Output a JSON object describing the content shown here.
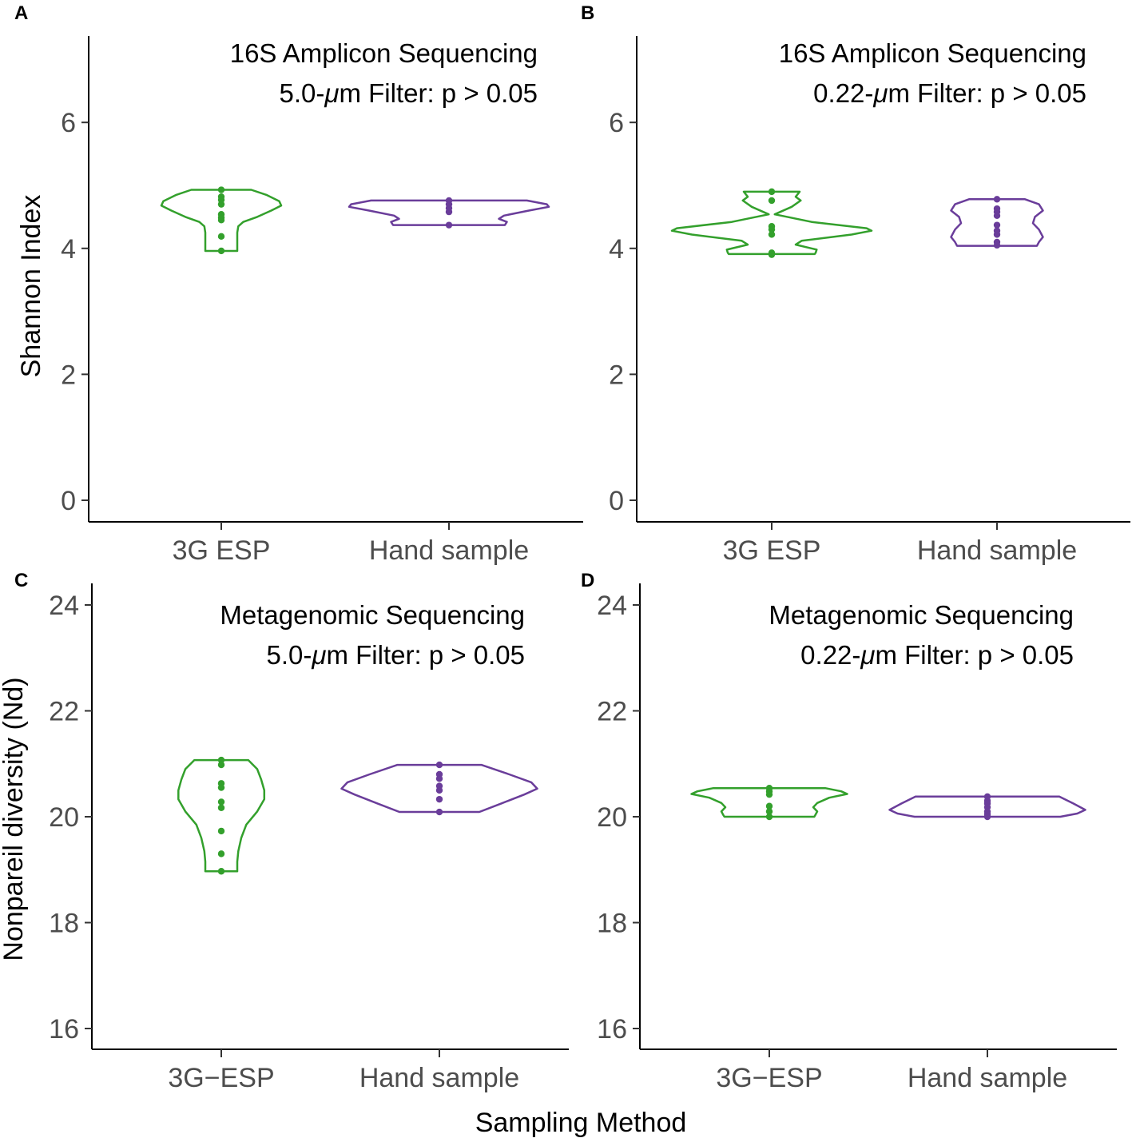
{
  "colors": {
    "esp": "#33a02c",
    "hand": "#6a3d9a",
    "axis": "#000000",
    "tick_text": "#4d4d4d"
  },
  "labels": {
    "y_top": "Shannon Index",
    "y_bottom": "Nonpareil diversity (Nd)",
    "x_shared": "Sampling Method"
  },
  "chart_data": [
    {
      "panel": "A",
      "type": "violin",
      "title": [
        "16S Amplicon Sequencing",
        "5.0-μm Filter: p > 0.05"
      ],
      "categories": [
        "3G ESP",
        "Hand sample"
      ],
      "ylim": [
        -0.35,
        7.3
      ],
      "yticks": [
        0,
        2,
        4,
        6
      ],
      "series": [
        {
          "name": "3G ESP",
          "color": "esp",
          "points": [
            4.93,
            4.82,
            4.77,
            4.7,
            4.54,
            4.49,
            4.45,
            4.19,
            3.96
          ],
          "density": [
            [
              4.93,
              0.3
            ],
            [
              4.85,
              0.45
            ],
            [
              4.75,
              0.58
            ],
            [
              4.68,
              0.6
            ],
            [
              4.6,
              0.5
            ],
            [
              4.5,
              0.36
            ],
            [
              4.42,
              0.22
            ],
            [
              4.35,
              0.17
            ],
            [
              4.25,
              0.16
            ],
            [
              3.96,
              0.16
            ]
          ]
        },
        {
          "name": "Hand sample",
          "color": "hand",
          "points": [
            4.76,
            4.7,
            4.64,
            4.58,
            4.37
          ],
          "density": [
            [
              4.76,
              0.78
            ],
            [
              4.7,
              0.98
            ],
            [
              4.66,
              1.0
            ],
            [
              4.6,
              0.8
            ],
            [
              4.52,
              0.55
            ],
            [
              4.47,
              0.5
            ],
            [
              4.42,
              0.58
            ],
            [
              4.37,
              0.56
            ]
          ]
        }
      ]
    },
    {
      "panel": "B",
      "type": "violin",
      "title": [
        "16S Amplicon Sequencing",
        "0.22-μm Filter: p > 0.05"
      ],
      "categories": [
        "3G ESP",
        "Hand sample"
      ],
      "ylim": [
        -0.35,
        7.3
      ],
      "yticks": [
        0,
        2,
        4,
        6
      ],
      "series": [
        {
          "name": "3G ESP",
          "color": "esp",
          "points": [
            4.9,
            4.76,
            4.35,
            4.3,
            4.22,
            3.93,
            3.9
          ],
          "density": [
            [
              4.9,
              0.28
            ],
            [
              4.82,
              0.24
            ],
            [
              4.76,
              0.29
            ],
            [
              4.66,
              0.2
            ],
            [
              4.54,
              0.03
            ],
            [
              4.42,
              0.4
            ],
            [
              4.32,
              0.95
            ],
            [
              4.28,
              1.0
            ],
            [
              4.22,
              0.8
            ],
            [
              4.12,
              0.3
            ],
            [
              4.06,
              0.24
            ],
            [
              3.98,
              0.45
            ],
            [
              3.93,
              0.44
            ],
            [
              3.91,
              0.43
            ]
          ]
        },
        {
          "name": "Hand sample",
          "color": "hand",
          "points": [
            4.78,
            4.63,
            4.58,
            4.52,
            4.37,
            4.28,
            4.22,
            4.1,
            4.05
          ],
          "density": [
            [
              4.78,
              0.28
            ],
            [
              4.7,
              0.42
            ],
            [
              4.6,
              0.46
            ],
            [
              4.5,
              0.38
            ],
            [
              4.4,
              0.36
            ],
            [
              4.3,
              0.42
            ],
            [
              4.18,
              0.46
            ],
            [
              4.1,
              0.42
            ],
            [
              4.04,
              0.4
            ]
          ]
        }
      ]
    },
    {
      "panel": "C",
      "type": "violin",
      "title": [
        "Metagenomic Sequencing",
        "5.0-μm Filter: p > 0.05"
      ],
      "categories": [
        "3G−ESP",
        "Hand sample"
      ],
      "ylim": [
        15.6,
        24.4
      ],
      "yticks": [
        16,
        18,
        20,
        22,
        24
      ],
      "series": [
        {
          "name": "3G-ESP",
          "color": "esp",
          "points": [
            21.07,
            20.98,
            20.63,
            20.55,
            20.28,
            20.17,
            19.73,
            19.3,
            18.97
          ],
          "density": [
            [
              21.07,
              0.27
            ],
            [
              20.9,
              0.36
            ],
            [
              20.7,
              0.4
            ],
            [
              20.5,
              0.43
            ],
            [
              20.33,
              0.43
            ],
            [
              20.1,
              0.36
            ],
            [
              19.85,
              0.25
            ],
            [
              19.6,
              0.2
            ],
            [
              19.35,
              0.17
            ],
            [
              19.15,
              0.16
            ],
            [
              18.97,
              0.16
            ]
          ]
        },
        {
          "name": "Hand sample",
          "color": "hand",
          "points": [
            20.98,
            20.8,
            20.72,
            20.58,
            20.5,
            20.33,
            20.09
          ],
          "density": [
            [
              20.98,
              0.42
            ],
            [
              20.8,
              0.7
            ],
            [
              20.65,
              0.92
            ],
            [
              20.53,
              0.98
            ],
            [
              20.42,
              0.85
            ],
            [
              20.25,
              0.62
            ],
            [
              20.09,
              0.4
            ]
          ]
        }
      ]
    },
    {
      "panel": "D",
      "type": "violin",
      "title": [
        "Metagenomic Sequencing",
        "0.22-μm Filter: p > 0.05"
      ],
      "categories": [
        "3G−ESP",
        "Hand sample"
      ],
      "ylim": [
        15.6,
        24.4
      ],
      "yticks": [
        16,
        18,
        20,
        22,
        24
      ],
      "series": [
        {
          "name": "3G-ESP",
          "color": "esp",
          "points": [
            20.54,
            20.48,
            20.42,
            20.2,
            20.1,
            20.0
          ],
          "density": [
            [
              20.54,
              0.56
            ],
            [
              20.48,
              0.72
            ],
            [
              20.43,
              0.78
            ],
            [
              20.36,
              0.6
            ],
            [
              20.26,
              0.48
            ],
            [
              20.18,
              0.44
            ],
            [
              20.1,
              0.48
            ],
            [
              20.03,
              0.46
            ],
            [
              20.0,
              0.45
            ]
          ]
        },
        {
          "name": "Hand sample",
          "color": "hand",
          "points": [
            20.38,
            20.3,
            20.25,
            20.18,
            20.1,
            20.05,
            20.0
          ],
          "density": [
            [
              20.38,
              0.72
            ],
            [
              20.25,
              0.86
            ],
            [
              20.13,
              0.98
            ],
            [
              20.06,
              0.9
            ],
            [
              20.0,
              0.73
            ]
          ]
        }
      ]
    }
  ]
}
